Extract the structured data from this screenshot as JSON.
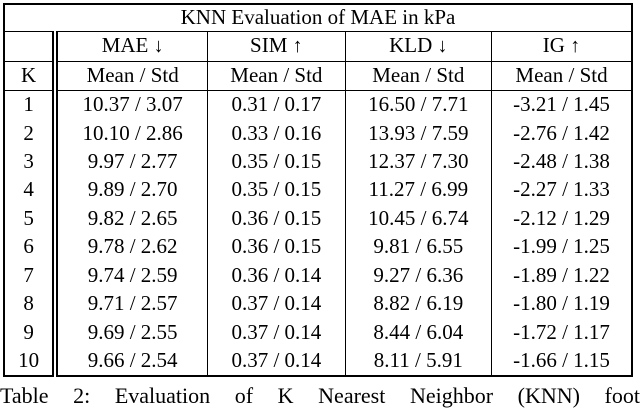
{
  "table": {
    "title": "KNN Evaluation of MAE in kPa",
    "k_header": "K",
    "subheader_label": "Mean / Std",
    "metric_headers": [
      {
        "label": "MAE",
        "arrow": "↓"
      },
      {
        "label": "SIM",
        "arrow": "↑"
      },
      {
        "label": "KLD",
        "arrow": "↓"
      },
      {
        "label": "IG",
        "arrow": "↑"
      }
    ],
    "rows": [
      {
        "k": "1",
        "values": [
          "10.37 / 3.07",
          "0.31 / 0.17",
          "16.50 / 7.71",
          "-3.21 / 1.45"
        ]
      },
      {
        "k": "2",
        "values": [
          "10.10 / 2.86",
          "0.33 / 0.16",
          "13.93 / 7.59",
          "-2.76 / 1.42"
        ]
      },
      {
        "k": "3",
        "values": [
          "9.97 / 2.77",
          "0.35 / 0.15",
          "12.37 / 7.30",
          "-2.48 / 1.38"
        ]
      },
      {
        "k": "4",
        "values": [
          "9.89 / 2.70",
          "0.35 / 0.15",
          "11.27 / 6.99",
          "-2.27 / 1.33"
        ]
      },
      {
        "k": "5",
        "values": [
          "9.82 / 2.65",
          "0.36 / 0.15",
          "10.45 / 6.74",
          "-2.12 / 1.29"
        ]
      },
      {
        "k": "6",
        "values": [
          "9.78 / 2.62",
          "0.36 / 0.15",
          "9.81 / 6.55",
          "-1.99 / 1.25"
        ]
      },
      {
        "k": "7",
        "values": [
          "9.74 / 2.59",
          "0.36 / 0.14",
          "9.27 / 6.36",
          "-1.89 / 1.22"
        ]
      },
      {
        "k": "8",
        "values": [
          "9.71 / 2.57",
          "0.37 / 0.14",
          "8.82 / 6.19",
          "-1.80 / 1.19"
        ]
      },
      {
        "k": "9",
        "values": [
          "9.69 / 2.55",
          "0.37 / 0.14",
          "8.44 / 6.04",
          "-1.72 / 1.17"
        ]
      },
      {
        "k": "10",
        "values": [
          "9.66 / 2.54",
          "0.37 / 0.14",
          "8.11 / 5.91",
          "-1.66 / 1.15"
        ]
      }
    ]
  },
  "caption": "Table 2: Evaluation of K Nearest Neighbor (KNN) foot",
  "colors": {
    "background": "#ffffff",
    "text": "#000000",
    "rule": "#000000"
  },
  "chart_data": {
    "type": "table",
    "title": "KNN Evaluation of MAE in kPa",
    "metrics": [
      "MAE",
      "SIM",
      "KLD",
      "IG"
    ],
    "better_direction": [
      "lower",
      "higher",
      "lower",
      "higher"
    ],
    "k": [
      1,
      2,
      3,
      4,
      5,
      6,
      7,
      8,
      9,
      10
    ],
    "mae_mean": [
      10.37,
      10.1,
      9.97,
      9.89,
      9.82,
      9.78,
      9.74,
      9.71,
      9.69,
      9.66
    ],
    "mae_std": [
      3.07,
      2.86,
      2.77,
      2.7,
      2.65,
      2.62,
      2.59,
      2.57,
      2.55,
      2.54
    ],
    "sim_mean": [
      0.31,
      0.33,
      0.35,
      0.35,
      0.36,
      0.36,
      0.36,
      0.37,
      0.37,
      0.37
    ],
    "sim_std": [
      0.17,
      0.16,
      0.15,
      0.15,
      0.15,
      0.15,
      0.14,
      0.14,
      0.14,
      0.14
    ],
    "kld_mean": [
      16.5,
      13.93,
      12.37,
      11.27,
      10.45,
      9.81,
      9.27,
      8.82,
      8.44,
      8.11
    ],
    "kld_std": [
      7.71,
      7.59,
      7.3,
      6.99,
      6.74,
      6.55,
      6.36,
      6.19,
      6.04,
      5.91
    ],
    "ig_mean": [
      -3.21,
      -2.76,
      -2.48,
      -2.27,
      -2.12,
      -1.99,
      -1.89,
      -1.8,
      -1.72,
      -1.66
    ],
    "ig_std": [
      1.45,
      1.42,
      1.38,
      1.33,
      1.29,
      1.25,
      1.22,
      1.19,
      1.17,
      1.15
    ]
  }
}
